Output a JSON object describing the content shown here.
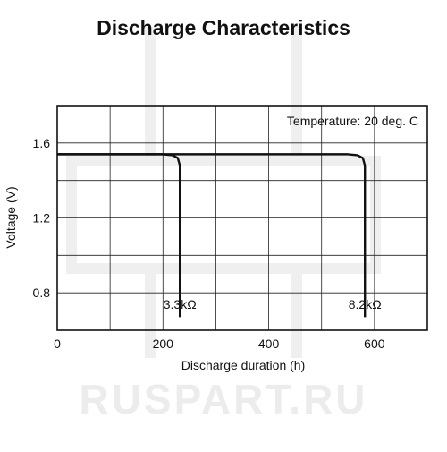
{
  "chart_data": {
    "type": "line",
    "title": "Discharge Characteristics",
    "xlabel": "Discharge duration (h)",
    "ylabel": "Voltage (V)",
    "xlim": [
      0,
      700
    ],
    "ylim": [
      0.6,
      1.8
    ],
    "x_ticks": [
      0,
      200,
      400,
      600
    ],
    "x_tick_labels": [
      "0",
      "200",
      "400",
      "600"
    ],
    "y_ticks": [
      0.8,
      1.2,
      1.6
    ],
    "y_tick_labels": [
      "0.8",
      "1.2",
      "1.6"
    ],
    "grid": true,
    "grid_x": [
      100,
      200,
      300,
      400,
      500,
      600
    ],
    "grid_y": [
      0.8,
      1.0,
      1.2,
      1.4,
      1.6
    ],
    "annotation": "Temperature: 20 deg. C",
    "series": [
      {
        "name": "3.3kΩ",
        "x": [
          0,
          200,
          218,
          228,
          232,
          232
        ],
        "y": [
          1.54,
          1.54,
          1.535,
          1.52,
          1.48,
          0.67
        ]
      },
      {
        "name": "8.2kΩ",
        "x": [
          0,
          550,
          568,
          578,
          582,
          582
        ],
        "y": [
          1.54,
          1.54,
          1.535,
          1.52,
          1.48,
          0.67
        ]
      }
    ]
  },
  "watermark": {
    "text": "RUSPART.RU",
    "color": "#ececec"
  }
}
